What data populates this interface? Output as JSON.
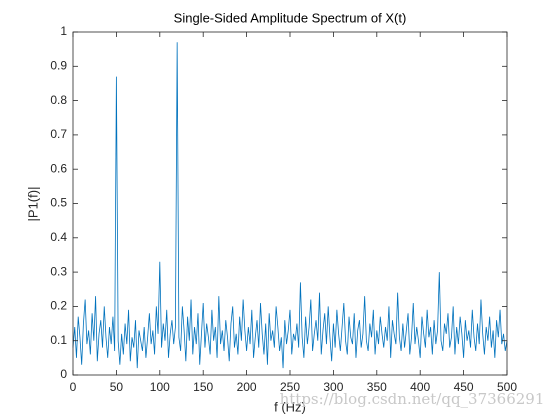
{
  "chart_data": {
    "type": "line",
    "title": "Single-Sided Amplitude Spectrum of X(t)",
    "x_label": "f (Hz)",
    "y_label": "|P1(f)|",
    "watermark": "https://blog.csdn.net/qq_37366291",
    "x": [
      0,
      2,
      4,
      6,
      8,
      10,
      12,
      14,
      16,
      18,
      20,
      22,
      24,
      26,
      28,
      30,
      32,
      34,
      36,
      38,
      40,
      42,
      44,
      46,
      48,
      50,
      52,
      54,
      56,
      58,
      60,
      62,
      64,
      66,
      68,
      70,
      72,
      74,
      76,
      78,
      80,
      82,
      84,
      86,
      88,
      90,
      92,
      94,
      96,
      98,
      100,
      102,
      104,
      106,
      108,
      110,
      112,
      114,
      116,
      118,
      120,
      122,
      124,
      126,
      128,
      130,
      132,
      134,
      136,
      138,
      140,
      142,
      144,
      146,
      148,
      150,
      152,
      154,
      156,
      158,
      160,
      162,
      164,
      166,
      168,
      170,
      172,
      174,
      176,
      178,
      180,
      182,
      184,
      186,
      188,
      190,
      192,
      194,
      196,
      198,
      200,
      202,
      204,
      206,
      208,
      210,
      212,
      214,
      216,
      218,
      220,
      222,
      224,
      226,
      228,
      230,
      232,
      234,
      236,
      238,
      240,
      242,
      244,
      246,
      248,
      250,
      252,
      254,
      256,
      258,
      260,
      262,
      264,
      266,
      268,
      270,
      272,
      274,
      276,
      278,
      280,
      282,
      284,
      286,
      288,
      290,
      292,
      294,
      296,
      298,
      300,
      302,
      304,
      306,
      308,
      310,
      312,
      314,
      316,
      318,
      320,
      322,
      324,
      326,
      328,
      330,
      332,
      334,
      336,
      338,
      340,
      342,
      344,
      346,
      348,
      350,
      352,
      354,
      356,
      358,
      360,
      362,
      364,
      366,
      368,
      370,
      372,
      374,
      376,
      378,
      380,
      382,
      384,
      386,
      388,
      390,
      392,
      394,
      396,
      398,
      400,
      402,
      404,
      406,
      408,
      410,
      412,
      414,
      416,
      418,
      420,
      422,
      424,
      426,
      428,
      430,
      432,
      434,
      436,
      438,
      440,
      442,
      444,
      446,
      448,
      450,
      452,
      454,
      456,
      458,
      460,
      462,
      464,
      466,
      468,
      470,
      472,
      474,
      476,
      478,
      480,
      482,
      484,
      486,
      488,
      490,
      492,
      494,
      496,
      498,
      500
    ],
    "series": [
      {
        "color": "#0072BD",
        "values": [
          0.08,
          0.14,
          0.05,
          0.17,
          0.11,
          0.03,
          0.15,
          0.22,
          0.09,
          0.13,
          0.06,
          0.18,
          0.1,
          0.23,
          0.04,
          0.12,
          0.16,
          0.08,
          0.2,
          0.11,
          0.05,
          0.14,
          0.09,
          0.17,
          0.07,
          0.87,
          0.1,
          0.03,
          0.12,
          0.06,
          0.15,
          0.09,
          0.19,
          0.04,
          0.11,
          0.08,
          0.16,
          0.02,
          0.13,
          0.1,
          0.07,
          0.14,
          0.05,
          0.11,
          0.18,
          0.09,
          0.13,
          0.06,
          0.2,
          0.12,
          0.33,
          0.08,
          0.15,
          0.1,
          0.19,
          0.05,
          0.12,
          0.16,
          0.09,
          0.14,
          0.97,
          0.11,
          0.07,
          0.2,
          0.13,
          0.04,
          0.17,
          0.1,
          0.22,
          0.06,
          0.14,
          0.09,
          0.18,
          0.03,
          0.12,
          0.21,
          0.08,
          0.15,
          0.11,
          0.06,
          0.19,
          0.1,
          0.14,
          0.05,
          0.23,
          0.09,
          0.13,
          0.07,
          0.16,
          0.11,
          0.04,
          0.15,
          0.2,
          0.08,
          0.12,
          0.06,
          0.17,
          0.1,
          0.22,
          0.13,
          0.07,
          0.14,
          0.09,
          0.19,
          0.05,
          0.11,
          0.16,
          0.08,
          0.21,
          0.12,
          0.06,
          0.15,
          0.03,
          0.18,
          0.1,
          0.13,
          0.08,
          0.2,
          0.14,
          0.07,
          0.11,
          0.02,
          0.16,
          0.09,
          0.13,
          0.19,
          0.06,
          0.12,
          0.1,
          0.15,
          0.08,
          0.27,
          0.11,
          0.05,
          0.17,
          0.09,
          0.14,
          0.22,
          0.07,
          0.12,
          0.16,
          0.1,
          0.24,
          0.06,
          0.13,
          0.18,
          0.09,
          0.2,
          0.11,
          0.04,
          0.15,
          0.08,
          0.19,
          0.12,
          0.07,
          0.14,
          0.21,
          0.1,
          0.06,
          0.17,
          0.11,
          0.09,
          0.18,
          0.05,
          0.13,
          0.16,
          0.08,
          0.12,
          0.23,
          0.1,
          0.07,
          0.15,
          0.11,
          0.19,
          0.06,
          0.13,
          0.09,
          0.17,
          0.12,
          0.08,
          0.14,
          0.1,
          0.2,
          0.05,
          0.16,
          0.12,
          0.09,
          0.24,
          0.11,
          0.07,
          0.15,
          0.08,
          0.13,
          0.18,
          0.06,
          0.11,
          0.21,
          0.09,
          0.14,
          0.1,
          0.05,
          0.17,
          0.12,
          0.08,
          0.19,
          0.11,
          0.14,
          0.06,
          0.16,
          0.09,
          0.13,
          0.3,
          0.1,
          0.07,
          0.15,
          0.12,
          0.18,
          0.08,
          0.11,
          0.2,
          0.06,
          0.14,
          0.09,
          0.17,
          0.12,
          0.05,
          0.16,
          0.1,
          0.13,
          0.08,
          0.19,
          0.11,
          0.07,
          0.15,
          0.09,
          0.22,
          0.12,
          0.06,
          0.14,
          0.1,
          0.17,
          0.08,
          0.13,
          0.05,
          0.16,
          0.11,
          0.19,
          0.09,
          0.12,
          0.07,
          0.1
        ]
      }
    ],
    "xlim": [
      0,
      500
    ],
    "xticks": [
      0,
      50,
      100,
      150,
      200,
      250,
      300,
      350,
      400,
      450,
      500
    ],
    "ylim": [
      0,
      1
    ],
    "yticks": [
      0,
      0.1,
      0.2,
      0.3,
      0.4,
      0.5,
      0.6,
      0.7,
      0.8,
      0.9,
      1
    ]
  }
}
